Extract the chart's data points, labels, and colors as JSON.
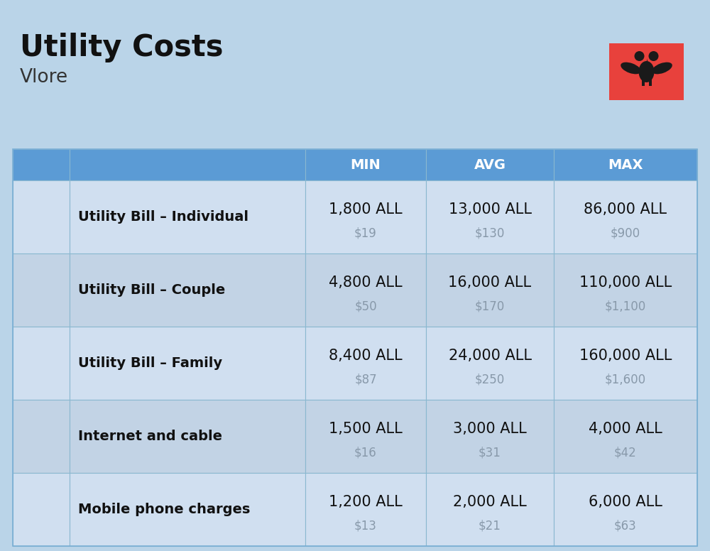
{
  "title": "Utility Costs",
  "subtitle": "Vlore",
  "background_color": "#bad4e8",
  "header_bg_color": "#5b9bd5",
  "header_text_color": "#ffffff",
  "row_bg_color_even": "#ccd9e8",
  "row_bg_color_odd": "#b8cfe0",
  "icon_col_bg_even": "#c0d4e6",
  "icon_col_bg_odd": "#aac2d8",
  "grid_line_color": "#8ab0cc",
  "columns": [
    "MIN",
    "AVG",
    "MAX"
  ],
  "rows": [
    {
      "label": "Utility Bill – Individual",
      "min_all": "1,800 ALL",
      "min_usd": "$19",
      "avg_all": "13,000 ALL",
      "avg_usd": "$130",
      "max_all": "86,000 ALL",
      "max_usd": "$900"
    },
    {
      "label": "Utility Bill – Couple",
      "min_all": "4,800 ALL",
      "min_usd": "$50",
      "avg_all": "16,000 ALL",
      "avg_usd": "$170",
      "max_all": "110,000 ALL",
      "max_usd": "$1,100"
    },
    {
      "label": "Utility Bill – Family",
      "min_all": "8,400 ALL",
      "min_usd": "$87",
      "avg_all": "24,000 ALL",
      "avg_usd": "$250",
      "max_all": "160,000 ALL",
      "max_usd": "$1,600"
    },
    {
      "label": "Internet and cable",
      "min_all": "1,500 ALL",
      "min_usd": "$16",
      "avg_all": "3,000 ALL",
      "avg_usd": "$31",
      "max_all": "4,000 ALL",
      "max_usd": "$42"
    },
    {
      "label": "Mobile phone charges",
      "min_all": "1,200 ALL",
      "min_usd": "$13",
      "avg_all": "2,000 ALL",
      "avg_usd": "$21",
      "max_all": "6,000 ALL",
      "max_usd": "$63"
    }
  ],
  "flag_color": "#e8413c",
  "title_fontsize": 30,
  "subtitle_fontsize": 19,
  "header_fontsize": 14,
  "label_fontsize": 14,
  "value_fontsize": 15,
  "usd_fontsize": 12
}
